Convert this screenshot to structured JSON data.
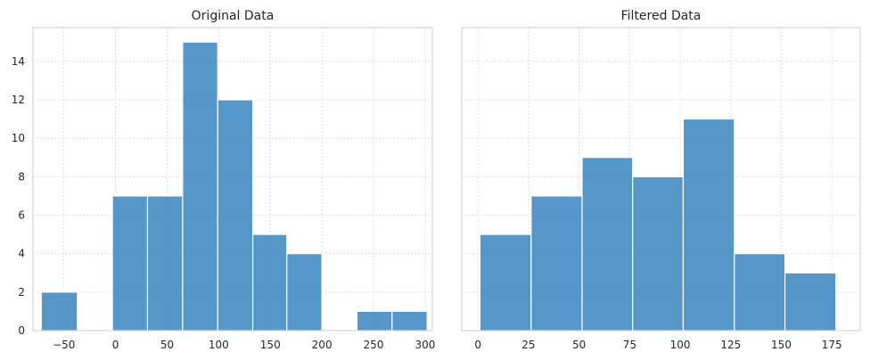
{
  "chart_data": [
    {
      "type": "bar",
      "title": "Original Data",
      "xlabel": "",
      "ylabel": "",
      "grid": true,
      "xlim": [
        -80,
        307
      ],
      "ylim": [
        0,
        15.75
      ],
      "xticks": [
        -50,
        0,
        50,
        100,
        150,
        200,
        250,
        300
      ],
      "xtick_labels": [
        "−50",
        "0",
        "50",
        "100",
        "150",
        "200",
        "250",
        "300"
      ],
      "yticks": [
        0,
        2,
        4,
        6,
        8,
        10,
        12,
        14
      ],
      "ytick_labels": [
        "0",
        "2",
        "4",
        "6",
        "8",
        "10",
        "12",
        "14"
      ],
      "bins": [
        {
          "x0": -72,
          "x1": -37,
          "count": 2
        },
        {
          "x0": -37,
          "x1": -3,
          "count": 0
        },
        {
          "x0": -3,
          "x1": 31,
          "count": 7
        },
        {
          "x0": 31,
          "x1": 65,
          "count": 7
        },
        {
          "x0": 65,
          "x1": 99,
          "count": 15
        },
        {
          "x0": 99,
          "x1": 133,
          "count": 12
        },
        {
          "x0": 133,
          "x1": 166,
          "count": 5
        },
        {
          "x0": 166,
          "x1": 200,
          "count": 4
        },
        {
          "x0": 200,
          "x1": 234,
          "count": 0
        },
        {
          "x0": 234,
          "x1": 268,
          "count": 1
        },
        {
          "x0": 268,
          "x1": 302,
          "count": 1
        }
      ]
    },
    {
      "type": "bar",
      "title": "Filtered Data",
      "xlabel": "",
      "ylabel": "",
      "grid": true,
      "xlim": [
        -8,
        189
      ],
      "ylim": [
        0,
        15.75
      ],
      "xticks": [
        0,
        25,
        50,
        75,
        100,
        125,
        150,
        175
      ],
      "xtick_labels": [
        "0",
        "25",
        "50",
        "75",
        "100",
        "125",
        "150",
        "175"
      ],
      "yticks": [
        0,
        2,
        4,
        6,
        8,
        10,
        12,
        14
      ],
      "ytick_labels": [],
      "bins": [
        {
          "x0": 1,
          "x1": 26.3,
          "count": 5
        },
        {
          "x0": 26.3,
          "x1": 51.5,
          "count": 7
        },
        {
          "x0": 51.5,
          "x1": 76.5,
          "count": 9
        },
        {
          "x0": 76.5,
          "x1": 101.5,
          "count": 8
        },
        {
          "x0": 101.5,
          "x1": 126.8,
          "count": 11
        },
        {
          "x0": 126.8,
          "x1": 151.8,
          "count": 4
        },
        {
          "x0": 151.8,
          "x1": 177,
          "count": 3
        }
      ]
    }
  ],
  "colors": {
    "bar_fill": "#3e89c0",
    "bar_edge": "#ffffff",
    "grid": "#d3d3d3",
    "frame": "#cccccc",
    "text": "#262626"
  }
}
